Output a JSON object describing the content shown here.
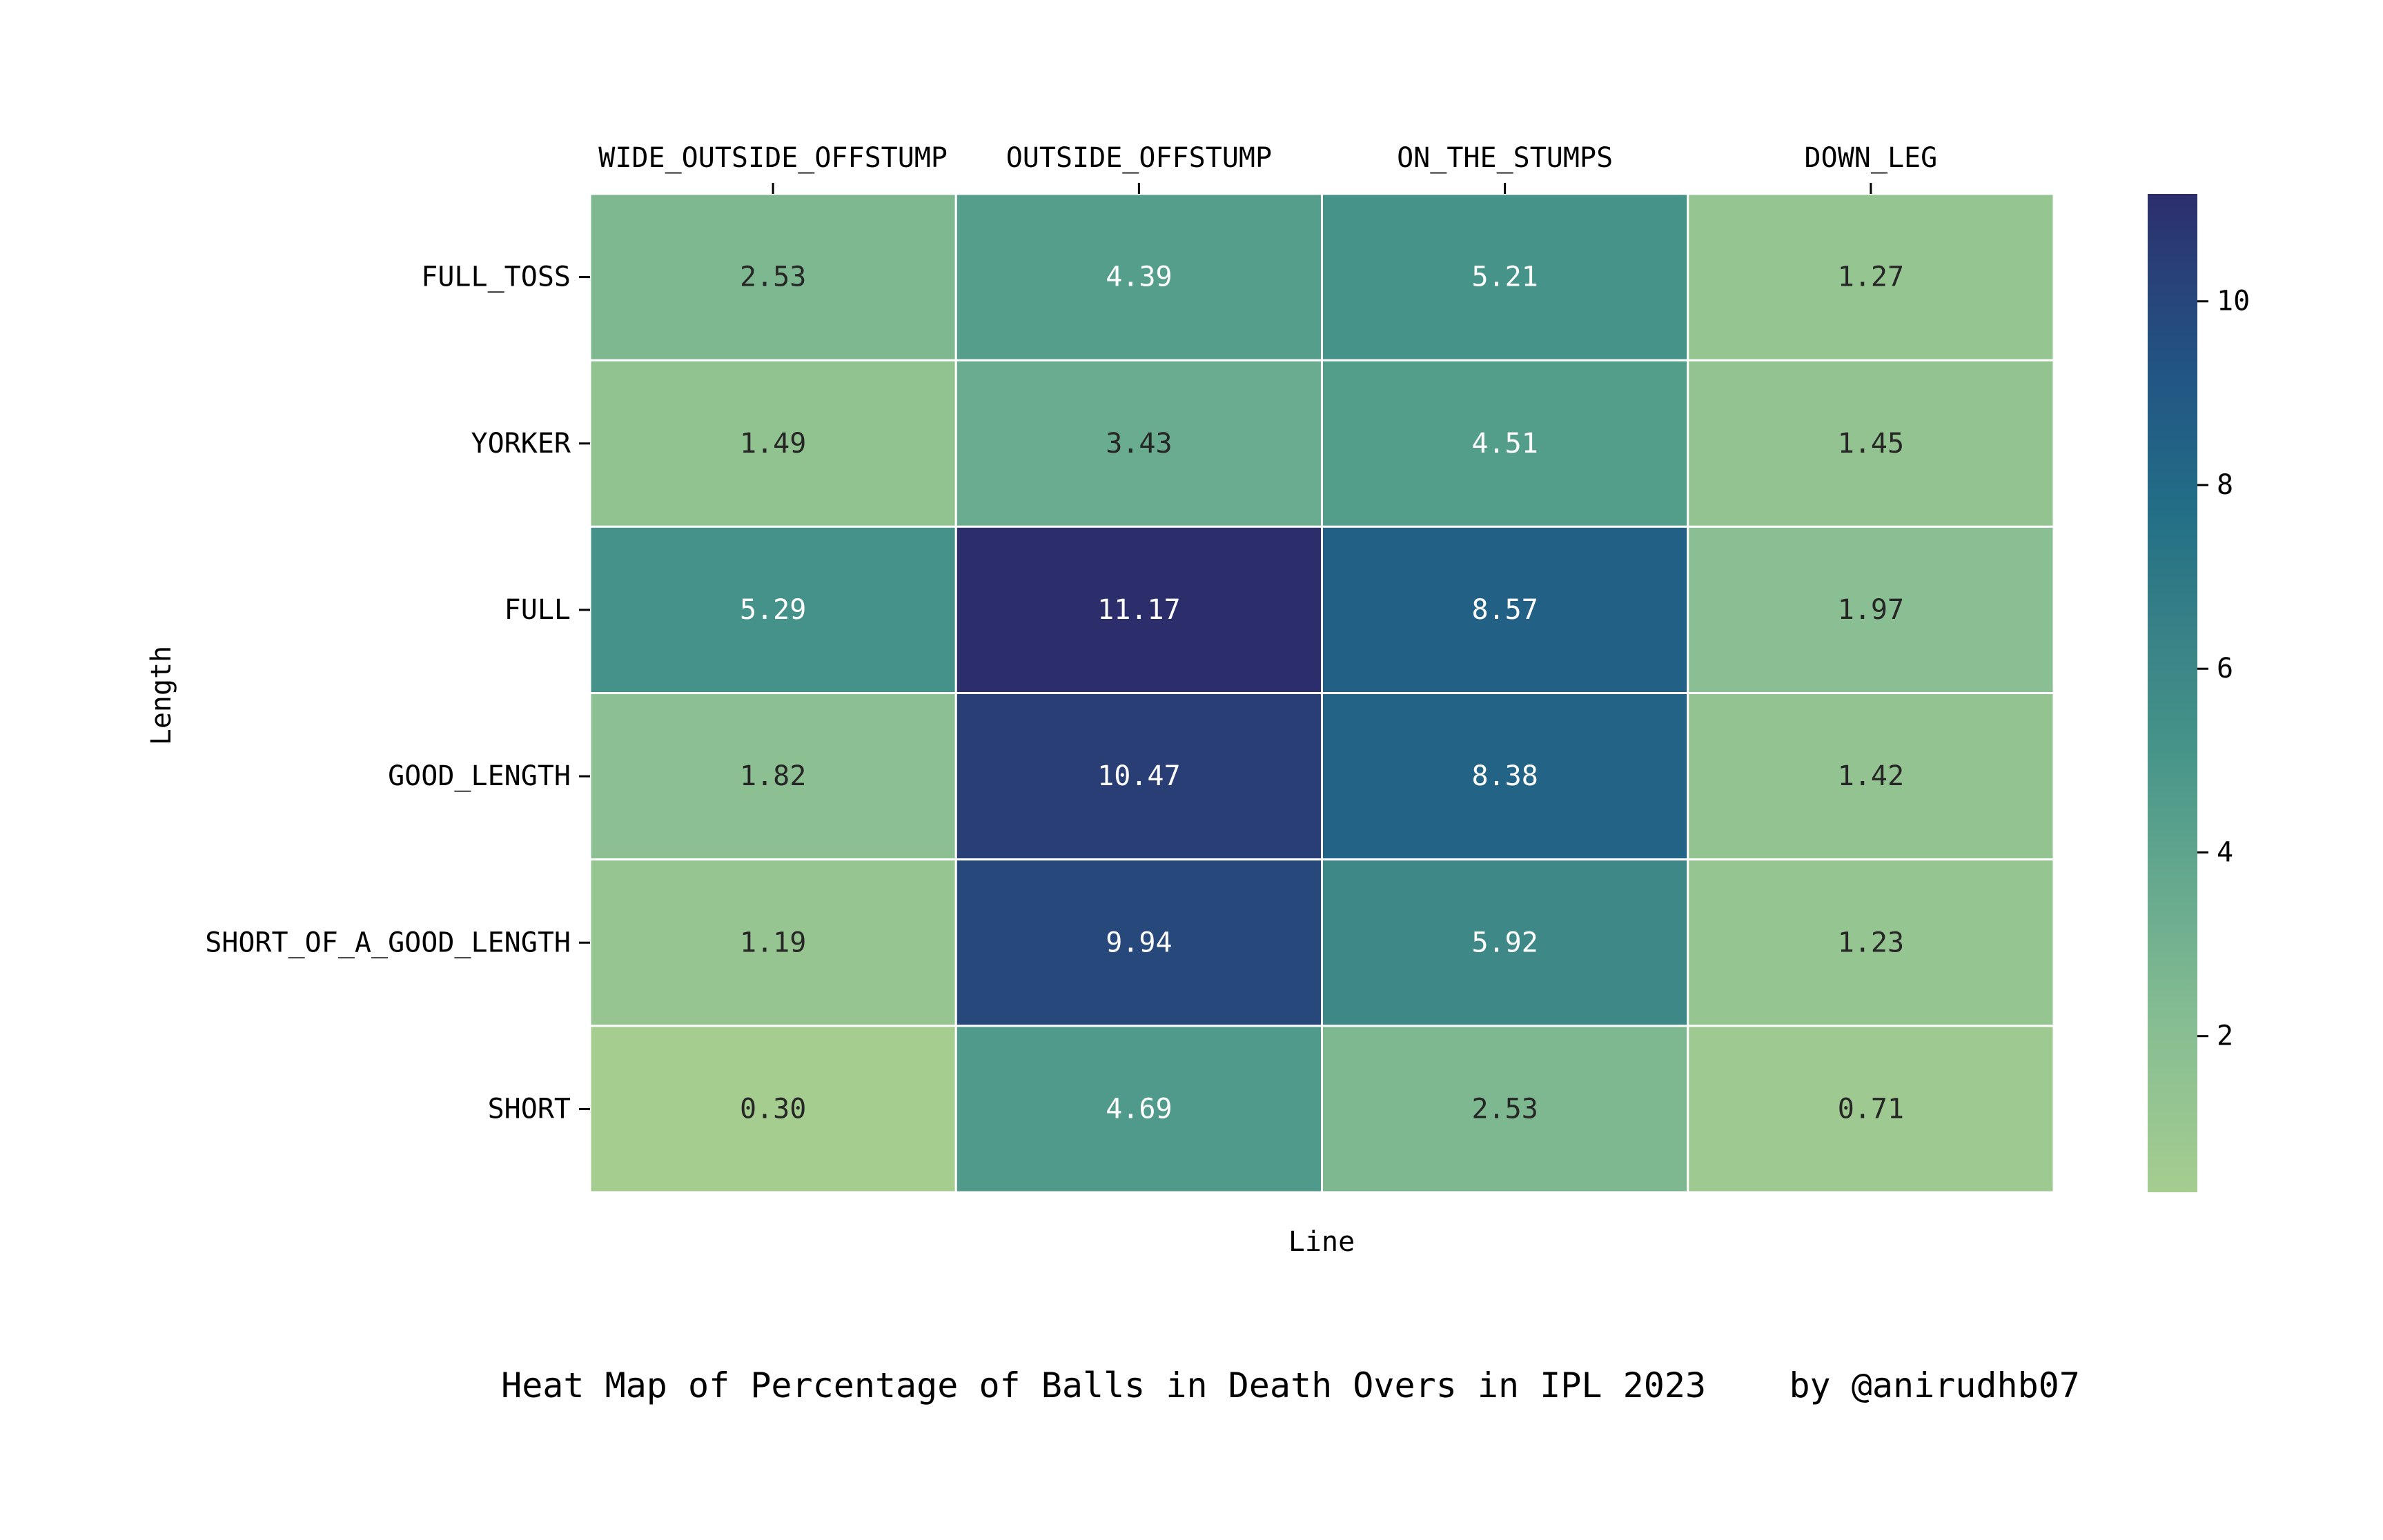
{
  "chart_data": {
    "type": "heatmap",
    "title": "",
    "caption": "Heat Map of Percentage of Balls in Death Overs in IPL 2023    by @anirudhb07",
    "xlabel": "Line",
    "ylabel": "Length",
    "x_categories": [
      "WIDE_OUTSIDE_OFFSTUMP",
      "OUTSIDE_OFFSTUMP",
      "ON_THE_STUMPS",
      "DOWN_LEG"
    ],
    "y_categories": [
      "FULL_TOSS",
      "YORKER",
      "FULL",
      "GOOD_LENGTH",
      "SHORT_OF_A_GOOD_LENGTH",
      "SHORT"
    ],
    "values": [
      [
        2.53,
        4.39,
        5.21,
        1.27
      ],
      [
        1.49,
        3.43,
        4.51,
        1.45
      ],
      [
        5.29,
        11.17,
        8.57,
        1.97
      ],
      [
        1.82,
        10.47,
        8.38,
        1.42
      ],
      [
        1.19,
        9.94,
        5.92,
        1.23
      ],
      [
        0.3,
        4.69,
        2.53,
        0.71
      ]
    ],
    "value_labels": [
      [
        "2.53",
        "4.39",
        "5.21",
        "1.27"
      ],
      [
        "1.49",
        "3.43",
        "4.51",
        "1.45"
      ],
      [
        "5.29",
        "11.17",
        "8.57",
        "1.97"
      ],
      [
        "1.82",
        "10.47",
        "8.38",
        "1.42"
      ],
      [
        "1.19",
        "9.94",
        "5.92",
        "1.23"
      ],
      [
        "0.30",
        "4.69",
        "2.53",
        "0.71"
      ]
    ],
    "colormap": "crest",
    "colorbar": {
      "range": [
        0.3,
        11.17
      ],
      "ticks": [
        2,
        4,
        6,
        8,
        10
      ],
      "tick_labels": [
        "2",
        "4",
        "6",
        "8",
        "10"
      ]
    },
    "x_axis_position": "top",
    "grid": false,
    "cell_border_color": "#ffffff"
  }
}
